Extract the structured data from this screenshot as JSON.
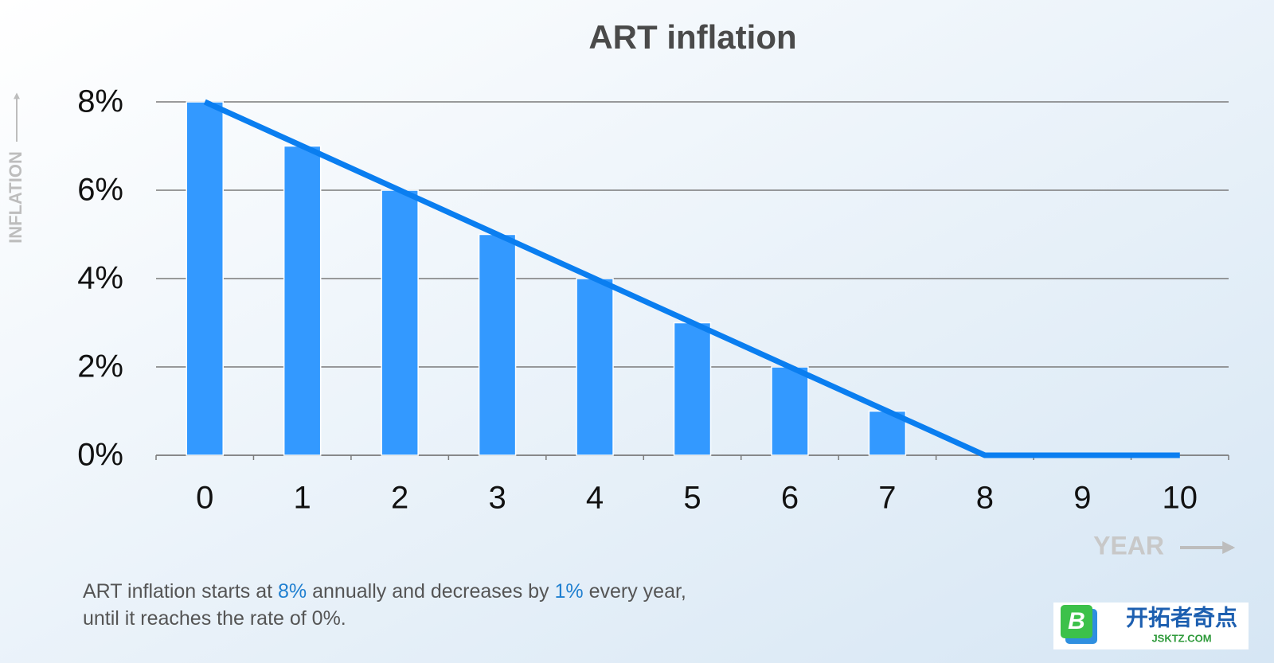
{
  "chart_data": {
    "type": "bar",
    "title": "ART inflation",
    "y_label": "INFLATION",
    "x_label": "YEAR",
    "categories": [
      "0",
      "1",
      "2",
      "3",
      "4",
      "5",
      "6",
      "7",
      "8",
      "9",
      "10"
    ],
    "series": [
      {
        "type": "bar",
        "color": "#3399ff",
        "values": [
          8,
          7,
          6,
          5,
          4,
          3,
          2,
          1,
          0,
          0,
          0
        ]
      },
      {
        "type": "line",
        "color": "#0a7ef0",
        "values": [
          8,
          7,
          6,
          5,
          4,
          3,
          2,
          1,
          0,
          0,
          0
        ]
      }
    ],
    "ylim": [
      0,
      8
    ],
    "yticks": [
      {
        "value": 0,
        "label": "0%"
      },
      {
        "value": 2,
        "label": "2%"
      },
      {
        "value": 4,
        "label": "4%"
      },
      {
        "value": 6,
        "label": "6%"
      },
      {
        "value": 8,
        "label": "8%"
      }
    ],
    "grid": true
  },
  "caption": [
    [
      "ART inflation starts at ",
      "8%",
      " annually and decreases by ",
      "1%",
      " every year,"
    ],
    [
      "until it reaches the rate of 0%."
    ]
  ],
  "watermark": {
    "name": "开拓者奇点",
    "url": "JSKTZ.COM"
  }
}
